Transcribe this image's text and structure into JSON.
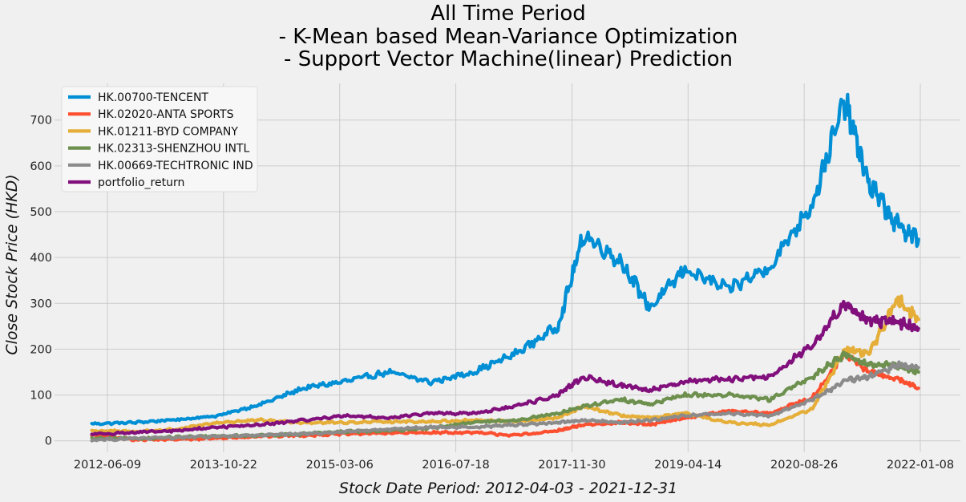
{
  "chart_data": {
    "type": "line",
    "title_lines": [
      "All Time Period",
      "- K-Mean based Mean-Variance Optimization",
      "- Support Vector Machine(linear) Prediction"
    ],
    "xlabel": "Stock Date Period: 2012-04-03 - 2021-12-31",
    "ylabel": "Close Stock Price (HKD)",
    "x_range": [
      "2012-04-03",
      "2021-12-31"
    ],
    "x_ticks": [
      "2012-06-09",
      "2013-10-22",
      "2015-03-06",
      "2016-07-18",
      "2017-11-30",
      "2019-04-14",
      "2020-08-26",
      "2022-01-08"
    ],
    "y_ticks": [
      0,
      100,
      200,
      300,
      400,
      500,
      600,
      700
    ],
    "ylim": [
      -25,
      780
    ],
    "grid": true,
    "legend_position": "top-left",
    "x": [
      "2012-04-03",
      "2012-10-01",
      "2013-04-01",
      "2013-10-01",
      "2014-04-01",
      "2014-10-01",
      "2015-04-01",
      "2015-10-01",
      "2016-04-01",
      "2016-10-01",
      "2017-04-01",
      "2017-10-01",
      "2018-01-20",
      "2018-07-01",
      "2018-11-01",
      "2019-04-01",
      "2019-10-01",
      "2020-04-01",
      "2020-10-01",
      "2021-02-17",
      "2021-06-01",
      "2021-10-01",
      "2021-12-31"
    ],
    "series": [
      {
        "name": "HK.00700-TENCENT",
        "color": "#008fd5",
        "values": [
          37,
          40,
          46,
          55,
          80,
          115,
          130,
          150,
          128,
          150,
          190,
          250,
          450,
          390,
          290,
          375,
          330,
          380,
          520,
          740,
          560,
          470,
          440
        ]
      },
      {
        "name": "HK.02020-ANTA SPORTS",
        "color": "#fc4f30",
        "values": [
          12,
          3,
          3,
          6,
          10,
          12,
          15,
          17,
          18,
          18,
          12,
          22,
          35,
          40,
          35,
          50,
          65,
          60,
          95,
          190,
          150,
          135,
          115
        ]
      },
      {
        "name": "HK.01211-BYD COMPANY",
        "color": "#e5ae38",
        "values": [
          22,
          20,
          25,
          40,
          45,
          40,
          40,
          42,
          42,
          45,
          42,
          50,
          75,
          55,
          50,
          60,
          40,
          35,
          70,
          200,
          190,
          310,
          265
        ]
      },
      {
        "name": "HK.02313-SHENZHOU INTL",
        "color": "#6d904f",
        "values": [
          5,
          5,
          8,
          10,
          12,
          15,
          20,
          22,
          28,
          40,
          45,
          60,
          75,
          90,
          80,
          100,
          100,
          90,
          140,
          190,
          165,
          165,
          150
        ]
      },
      {
        "name": "HK.00669-TECHTRONIC IND",
        "color": "#8b8b8b",
        "values": [
          2,
          5,
          7,
          10,
          12,
          15,
          20,
          25,
          30,
          30,
          35,
          40,
          45,
          40,
          45,
          55,
          60,
          55,
          90,
          130,
          140,
          165,
          160
        ]
      },
      {
        "name": "portfolio_return",
        "color": "#810f7c",
        "values": [
          15,
          18,
          22,
          30,
          35,
          45,
          55,
          50,
          60,
          60,
          75,
          100,
          140,
          120,
          110,
          130,
          135,
          140,
          210,
          300,
          260,
          260,
          245
        ]
      }
    ]
  }
}
